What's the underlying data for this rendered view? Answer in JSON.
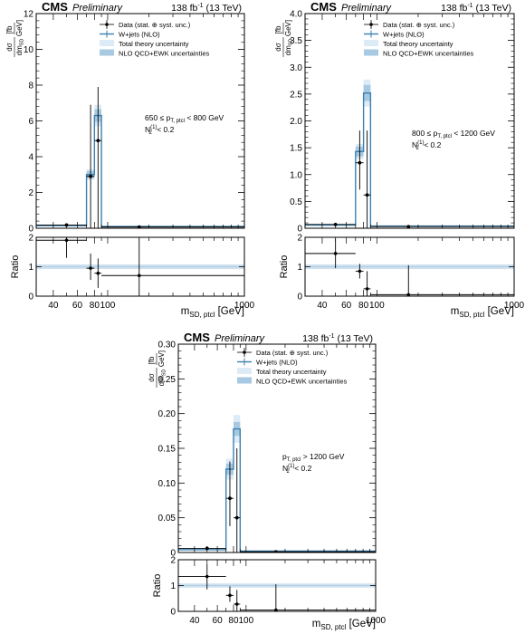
{
  "chart_data": [
    {
      "type": "line",
      "header": {
        "cms": "CMS",
        "preliminary": "Preliminary",
        "lumi": "138 fb",
        "lumi_sup": "-1",
        "energy": "(13 TeV)"
      },
      "ylabel": {
        "num": "dσ",
        "den": "dm",
        "den_sub": "SD",
        "unit_num": "fb",
        "unit_den": "GeV"
      },
      "xlabel": {
        "main": "m",
        "sub": "SD, ptcl",
        "unit": "[GeV]"
      },
      "ratio_label": "Ratio",
      "annotation": {
        "line1": "650 ≤ p",
        "line1_sub": "T, ptcl",
        "line1_end": " < 800 GeV",
        "line2": "N",
        "line2_sub": "2",
        "line2_sup": "(1)",
        "line2_end": " < 0.2"
      },
      "legend": [
        "Data (stat. ⊕ syst. unc.)",
        "W+jets (NLO)",
        "Total theory uncertainty",
        "NLO QCD+EWK uncertainties"
      ],
      "ylim": [
        0,
        12
      ],
      "yticks": [
        "0",
        "2",
        "4",
        "6",
        "8",
        "10",
        "12"
      ],
      "ratio_ylim": [
        0,
        2
      ],
      "ratio_yticks": [
        "0",
        "1",
        "2"
      ],
      "xlim": [
        30,
        1000
      ],
      "xticks": [
        {
          "v": 40,
          "l": "40"
        },
        {
          "v": 60,
          "l": "60"
        },
        {
          "v": 80,
          "l": "80"
        },
        {
          "v": 100,
          "l": "100"
        },
        {
          "v": 1000,
          "l": "1000"
        }
      ],
      "bin_edges": [
        30,
        70,
        80,
        90,
        1000
      ],
      "theory": [
        0.15,
        3.0,
        6.3,
        0.1
      ],
      "theory_unc": [
        0.05,
        0.3,
        0.6,
        0.03
      ],
      "nlo_unc": [
        0.03,
        0.2,
        0.35,
        0.02
      ],
      "data": [
        {
          "x": 50,
          "xlo": 30,
          "xhi": 70,
          "y": 0.18,
          "ylo": 0.04,
          "yhi": 0.04
        },
        {
          "x": 75,
          "xlo": 70,
          "xhi": 80,
          "y": 2.9,
          "ylo": 2.9,
          "yhi": 4.0
        },
        {
          "x": 85,
          "xlo": 80,
          "xhi": 90,
          "y": 4.9,
          "ylo": 4.9,
          "yhi": 3.0
        },
        {
          "x": 170,
          "xlo": 90,
          "xhi": 1000,
          "y": 0.07,
          "ylo": 0.03,
          "yhi": 0.03
        }
      ],
      "ratio": [
        {
          "x": 50,
          "xlo": 30,
          "xhi": 70,
          "y": 1.9,
          "ylo": 0.6,
          "yhi": 0.1
        },
        {
          "x": 75,
          "xlo": 70,
          "xhi": 80,
          "y": 0.95,
          "ylo": 0.4,
          "yhi": 0.5
        },
        {
          "x": 85,
          "xlo": 80,
          "xhi": 90,
          "y": 0.78,
          "ylo": 0.5,
          "yhi": 0.5
        },
        {
          "x": 170,
          "xlo": 90,
          "xhi": 1000,
          "y": 0.7,
          "ylo": 0.7,
          "yhi": 1.3
        }
      ]
    },
    {
      "type": "line",
      "header": {
        "cms": "CMS",
        "preliminary": "Preliminary",
        "lumi": "138 fb",
        "lumi_sup": "-1",
        "energy": "(13 TeV)"
      },
      "ylabel": {
        "num": "dσ",
        "den": "dm",
        "den_sub": "SD",
        "unit_num": "fb",
        "unit_den": "GeV"
      },
      "xlabel": {
        "main": "m",
        "sub": "SD, ptcl",
        "unit": "[GeV]"
      },
      "ratio_label": "Ratio",
      "annotation": {
        "line1": "800 ≤ p",
        "line1_sub": "T, ptcl",
        "line1_end": " < 1200 GeV",
        "line2": "N",
        "line2_sub": "2",
        "line2_sup": "(1)",
        "line2_end": " < 0.2"
      },
      "legend": [
        "Data (stat. ⊕ syst. unc.)",
        "W+jets (NLO)",
        "Total theory uncertainty",
        "NLO QCD+EWK uncertainties"
      ],
      "ylim": [
        0,
        4
      ],
      "yticks": [
        "0",
        "0.5",
        "1.0",
        "1.5",
        "2.0",
        "2.5",
        "3.0",
        "3.5",
        "4.0"
      ],
      "ratio_ylim": [
        0,
        2
      ],
      "ratio_yticks": [
        "0",
        "1",
        "2"
      ],
      "xlim": [
        30,
        1000
      ],
      "xticks": [
        {
          "v": 40,
          "l": "40"
        },
        {
          "v": 60,
          "l": "60"
        },
        {
          "v": 80,
          "l": "80"
        },
        {
          "v": 100,
          "l": "100"
        },
        {
          "v": 1000,
          "l": "1000"
        }
      ],
      "bin_edges": [
        30,
        70,
        80,
        90,
        1000
      ],
      "theory": [
        0.06,
        1.43,
        2.52,
        0.04
      ],
      "theory_unc": [
        0.02,
        0.14,
        0.25,
        0.01
      ],
      "nlo_unc": [
        0.01,
        0.09,
        0.15,
        0.01
      ],
      "data": [
        {
          "x": 50,
          "xlo": 30,
          "xhi": 70,
          "y": 0.07,
          "ylo": 0.03,
          "yhi": 0.03
        },
        {
          "x": 75,
          "xlo": 70,
          "xhi": 80,
          "y": 1.22,
          "ylo": 0.5,
          "yhi": 0.6
        },
        {
          "x": 85,
          "xlo": 80,
          "xhi": 90,
          "y": 0.62,
          "ylo": 0.62,
          "yhi": 1.2
        },
        {
          "x": 170,
          "xlo": 90,
          "xhi": 1000,
          "y": 0.03,
          "ylo": 0.03,
          "yhi": 0.03
        }
      ],
      "ratio": [
        {
          "x": 50,
          "xlo": 30,
          "xhi": 70,
          "y": 1.45,
          "ylo": 0.5,
          "yhi": 0.5
        },
        {
          "x": 75,
          "xlo": 70,
          "xhi": 80,
          "y": 0.85,
          "ylo": 0.25,
          "yhi": 0.25
        },
        {
          "x": 85,
          "xlo": 80,
          "xhi": 90,
          "y": 0.25,
          "ylo": 0.25,
          "yhi": 0.6
        },
        {
          "x": 170,
          "xlo": 90,
          "xhi": 1000,
          "y": 0.05,
          "ylo": 0.05,
          "yhi": 1.0
        }
      ]
    },
    {
      "type": "line",
      "header": {
        "cms": "CMS",
        "preliminary": "Preliminary",
        "lumi": "138 fb",
        "lumi_sup": "-1",
        "energy": "(13 TeV)"
      },
      "ylabel": {
        "num": "dσ",
        "den": "dm",
        "den_sub": "SD",
        "unit_num": "fb",
        "unit_den": "GeV"
      },
      "xlabel": {
        "main": "m",
        "sub": "SD, ptcl",
        "unit": "[GeV]"
      },
      "ratio_label": "Ratio",
      "annotation": {
        "line1": "p",
        "line1_sub": "T, ptcl",
        "line1_end": " > 1200 GeV",
        "line2": "N",
        "line2_sub": "2",
        "line2_sup": "(1)",
        "line2_end": " < 0.2"
      },
      "legend": [
        "Data (stat. ⊕ syst. unc.)",
        "W+jets (NLO)",
        "Total theory uncertainty",
        "NLO QCD+EWK uncertainties"
      ],
      "ylim": [
        0,
        0.3
      ],
      "yticks": [
        "0",
        "0.05",
        "0.10",
        "0.15",
        "0.20",
        "0.25",
        "0.30"
      ],
      "ratio_ylim": [
        0,
        2
      ],
      "ratio_yticks": [
        "0",
        "1",
        "2"
      ],
      "xlim": [
        30,
        1000
      ],
      "xticks": [
        {
          "v": 40,
          "l": "40"
        },
        {
          "v": 60,
          "l": "60"
        },
        {
          "v": 80,
          "l": "80"
        },
        {
          "v": 100,
          "l": "100"
        },
        {
          "v": 1000,
          "l": "1000"
        }
      ],
      "bin_edges": [
        30,
        70,
        80,
        90,
        1000
      ],
      "theory": [
        0.004,
        0.12,
        0.178,
        0.002
      ],
      "theory_unc": [
        0.001,
        0.015,
        0.02,
        0.001
      ],
      "nlo_unc": [
        0.0005,
        0.008,
        0.01,
        0.0005
      ],
      "data": [
        {
          "x": 50,
          "xlo": 30,
          "xhi": 70,
          "y": 0.006,
          "ylo": 0.003,
          "yhi": 0.003
        },
        {
          "x": 75,
          "xlo": 70,
          "xhi": 80,
          "y": 0.078,
          "ylo": 0.04,
          "yhi": 0.053
        },
        {
          "x": 85,
          "xlo": 80,
          "xhi": 90,
          "y": 0.05,
          "ylo": 0.05,
          "yhi": 0.1
        },
        {
          "x": 170,
          "xlo": 90,
          "xhi": 1000,
          "y": 0.001,
          "ylo": 0.001,
          "yhi": 0.001
        }
      ],
      "ratio": [
        {
          "x": 50,
          "xlo": 30,
          "xhi": 70,
          "y": 1.35,
          "ylo": 0.5,
          "yhi": 0.5
        },
        {
          "x": 75,
          "xlo": 70,
          "xhi": 80,
          "y": 0.62,
          "ylo": 0.25,
          "yhi": 0.35
        },
        {
          "x": 85,
          "xlo": 80,
          "xhi": 90,
          "y": 0.28,
          "ylo": 0.28,
          "yhi": 0.55
        },
        {
          "x": 170,
          "xlo": 90,
          "xhi": 1000,
          "y": 0.05,
          "ylo": 0.05,
          "yhi": 1.0
        }
      ]
    }
  ],
  "colors": {
    "theory": "#3b7fb0",
    "total_unc": "#dcebf6",
    "nlo_unc": "#a7cae2",
    "ratio_band": "#cfe1ef",
    "data": "#000000"
  }
}
